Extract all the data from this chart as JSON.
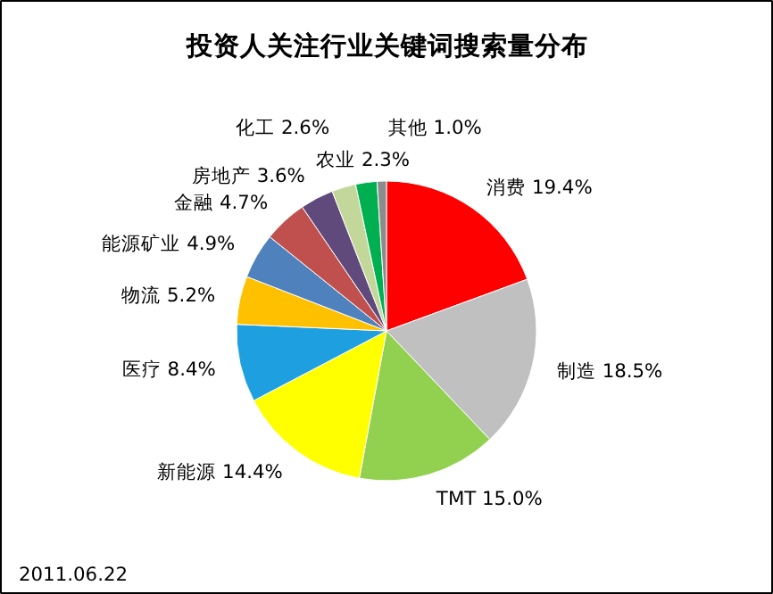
{
  "chart_data": {
    "type": "pie",
    "title": "投资人关注行业关键词搜索量分布",
    "categories": [
      "消费",
      "制造",
      "TMT",
      "新能源",
      "医疗",
      "物流",
      "能源矿业",
      "金融",
      "房地产",
      "化工",
      "农业",
      "其他"
    ],
    "values": [
      19.4,
      18.5,
      15.0,
      14.4,
      8.4,
      5.2,
      4.9,
      4.7,
      3.6,
      2.6,
      2.3,
      1.0
    ],
    "colors": [
      "#ff0000",
      "#c0c0c0",
      "#92d050",
      "#ffff00",
      "#1e9fe0",
      "#ffc000",
      "#4f81bd",
      "#c0504d",
      "#604a7b",
      "#c4d79b",
      "#00b050",
      "#8c8c8c"
    ],
    "value_labels": [
      "19.4%",
      "18.5%",
      "15.0%",
      "14.4%",
      "8.4%",
      "5.2%",
      "4.9%",
      "4.7%",
      "3.6%",
      "2.6%",
      "2.3%",
      "1.0%"
    ],
    "annotations": [
      "2011.06.22"
    ]
  }
}
